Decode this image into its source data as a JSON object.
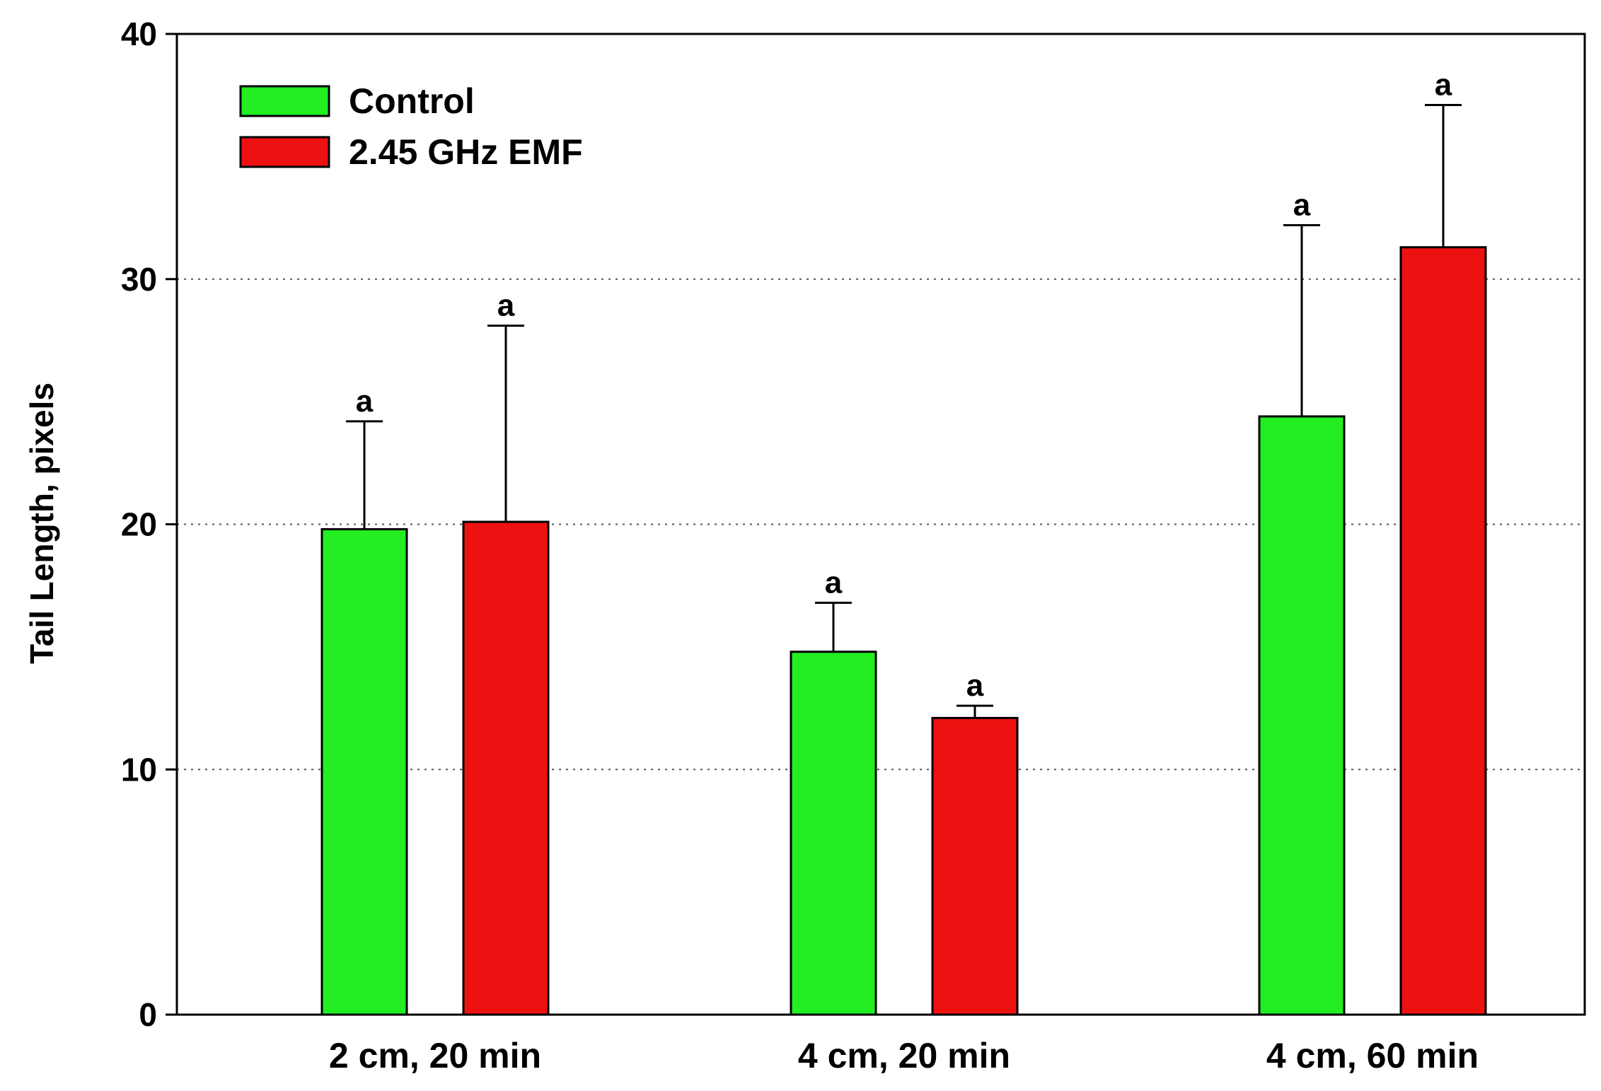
{
  "chart_data": {
    "type": "bar",
    "title": "",
    "xlabel": "",
    "ylabel": "Tail Length, pixels",
    "ylim": [
      0,
      40
    ],
    "yticks": [
      0,
      10,
      20,
      30,
      40
    ],
    "grid": "horizontal dotted",
    "legend_position": "top-left",
    "categories": [
      "2 cm, 20 min",
      "4 cm, 20 min",
      "4 cm, 60 min"
    ],
    "series": [
      {
        "name": "Control",
        "color": "#22ee22",
        "values": [
          19.8,
          14.8,
          24.4
        ],
        "error_upper": [
          24.2,
          16.8,
          32.2
        ],
        "significance": [
          "a",
          "a",
          "a"
        ]
      },
      {
        "name": "2.45 GHz EMF",
        "color": "#ee1111",
        "values": [
          20.1,
          12.1,
          31.3
        ],
        "error_upper": [
          28.1,
          12.6,
          37.1
        ],
        "significance": [
          "a",
          "a",
          "a"
        ]
      }
    ]
  }
}
